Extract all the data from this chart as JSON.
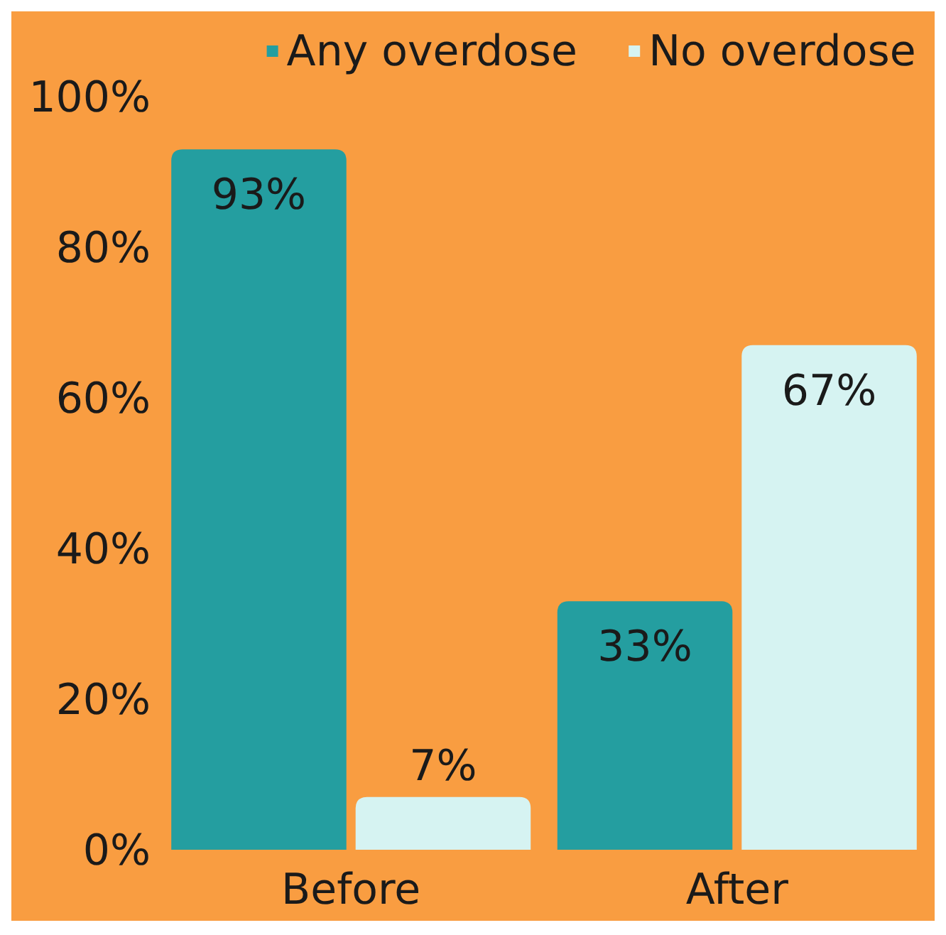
{
  "chart_data": {
    "type": "bar",
    "categories": [
      "Before",
      "After"
    ],
    "series": [
      {
        "name": "Any overdose",
        "color": "#249ea0",
        "values": [
          93,
          33
        ],
        "value_labels": [
          "93%",
          "33%"
        ]
      },
      {
        "name": "No overdose",
        "color": "#d6f3f2",
        "values": [
          7,
          67
        ],
        "value_labels": [
          "7%",
          "67%"
        ]
      }
    ],
    "ylim": [
      0,
      100
    ],
    "yticks": [
      {
        "value": 0,
        "label": "0%"
      },
      {
        "value": 20,
        "label": "20%"
      },
      {
        "value": 40,
        "label": "40%"
      },
      {
        "value": 60,
        "label": "60%"
      },
      {
        "value": 80,
        "label": "80%"
      },
      {
        "value": 100,
        "label": "100%"
      }
    ],
    "grid": false,
    "legend": "top right"
  }
}
